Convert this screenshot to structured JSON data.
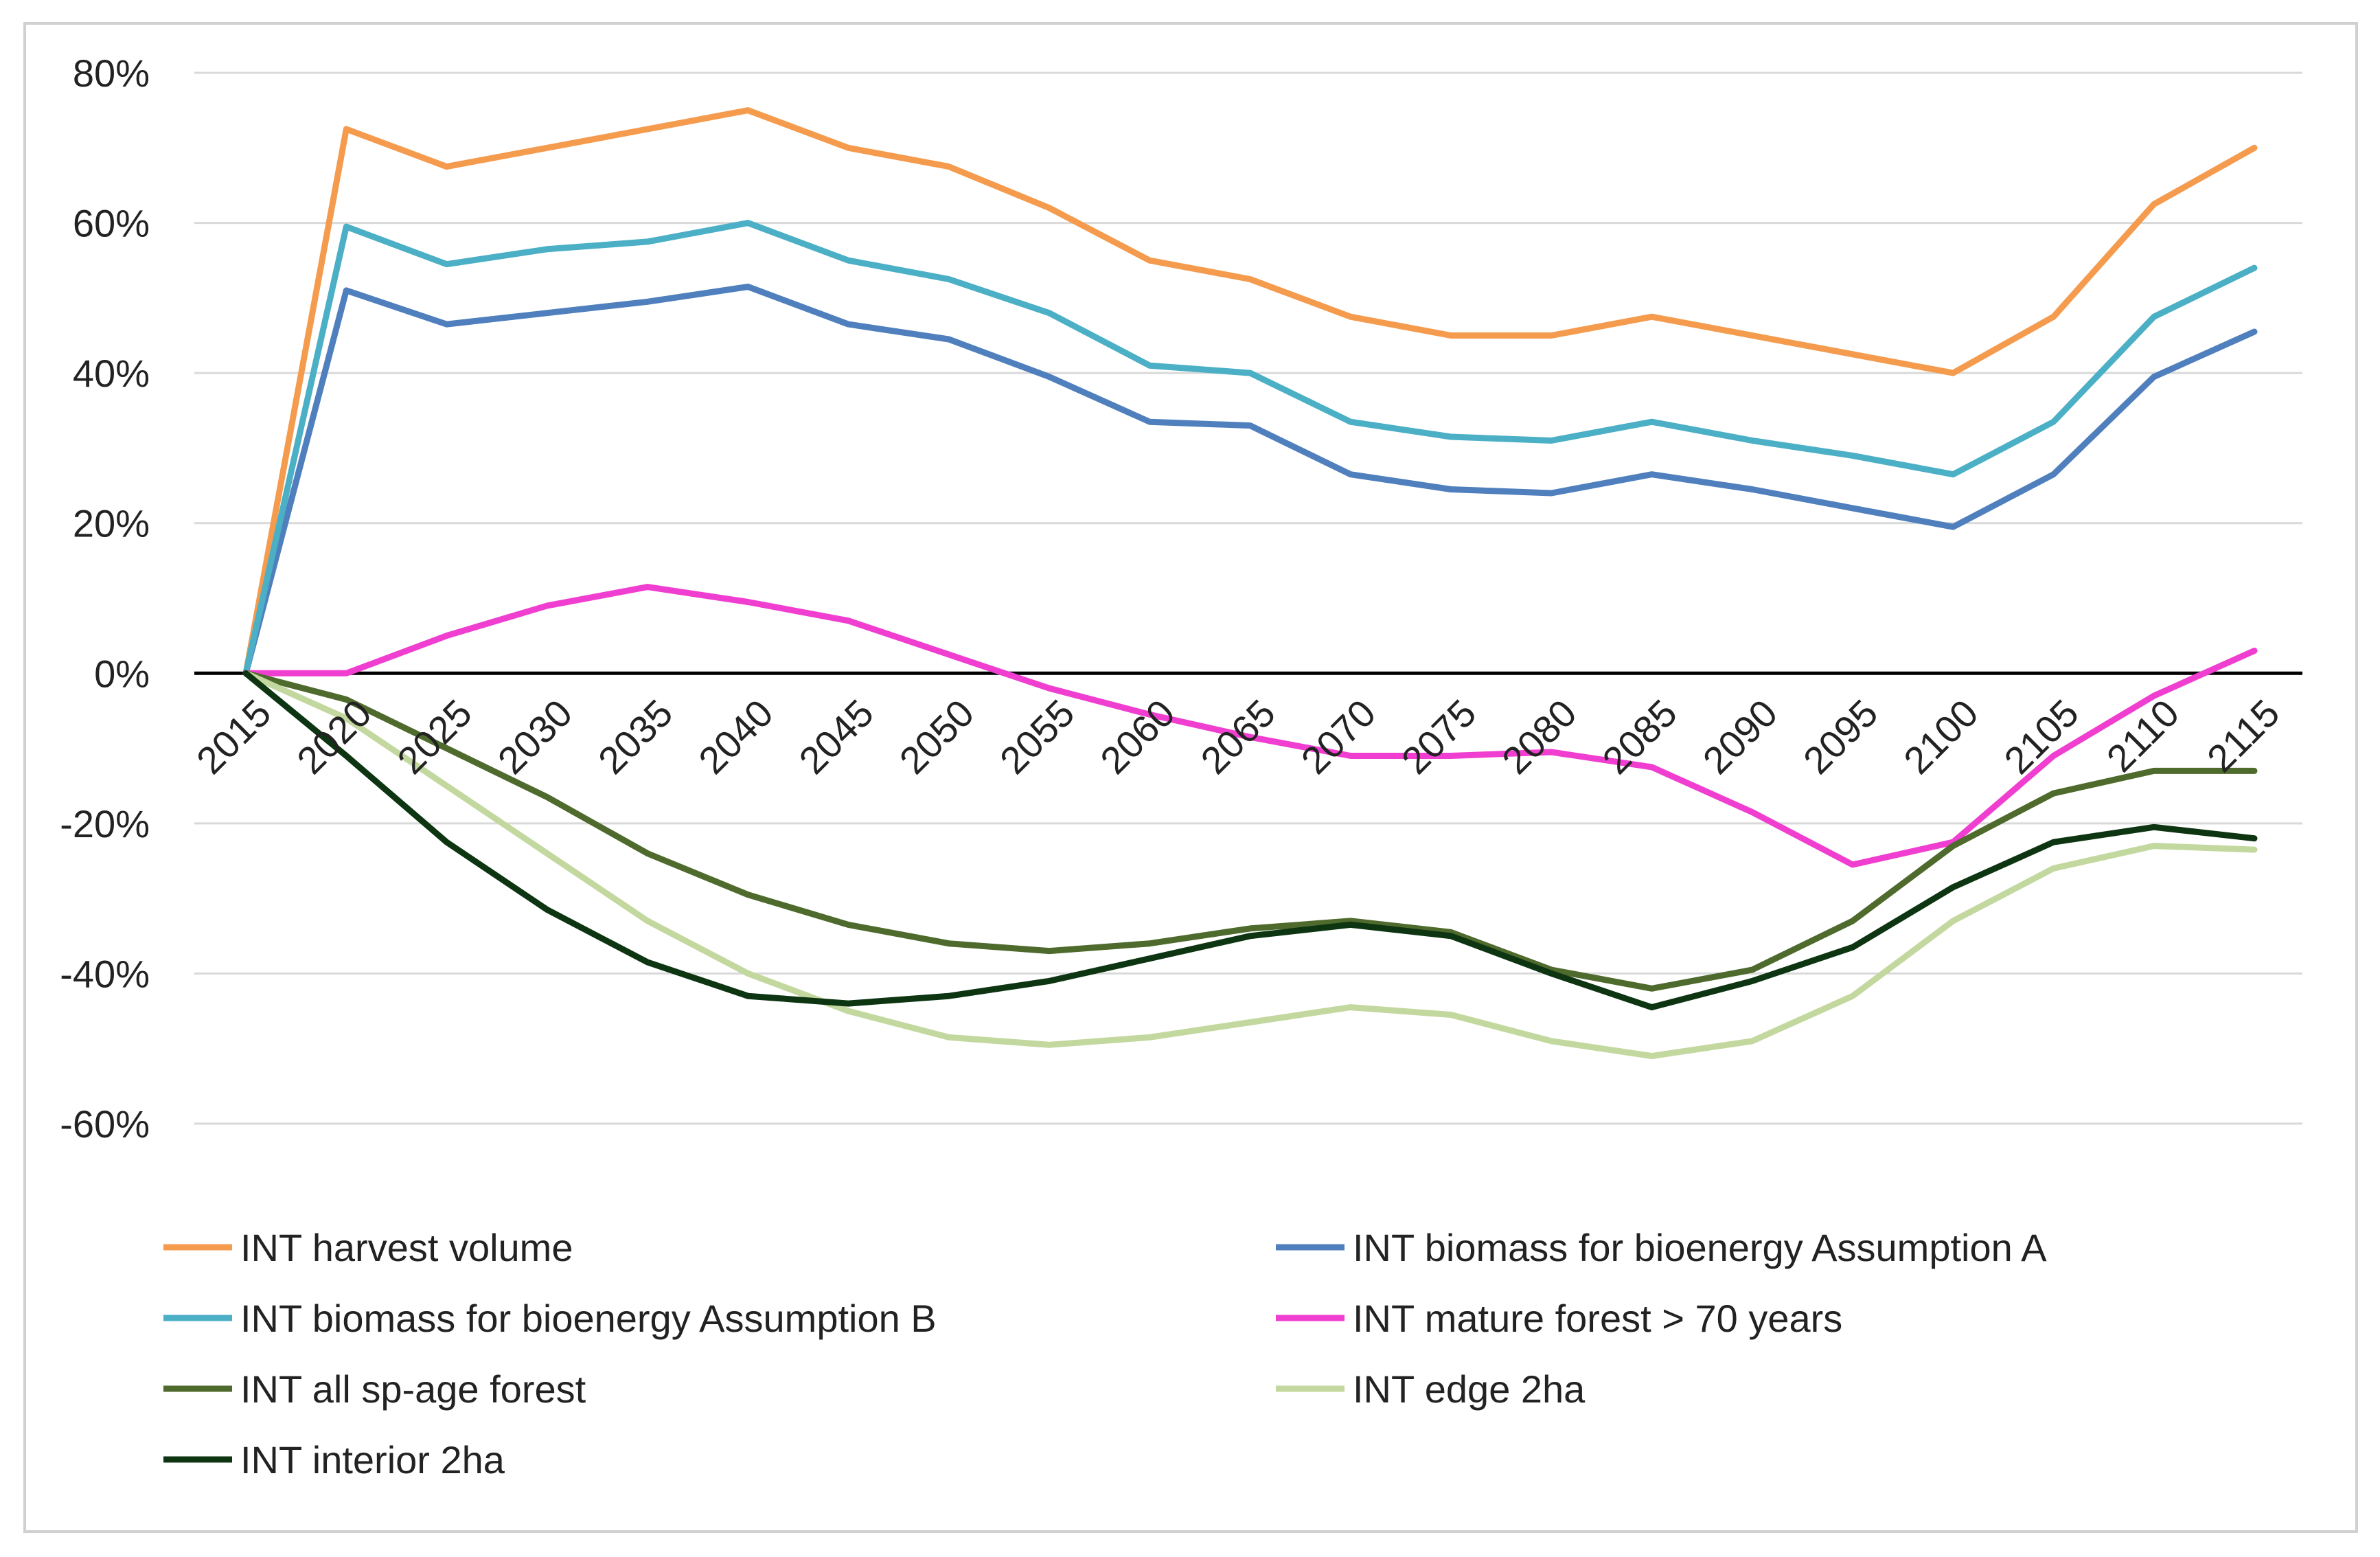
{
  "chart_data": {
    "type": "line",
    "title": "",
    "xlabel": "",
    "ylabel": "",
    "x": [
      "2015",
      "2020",
      "2025",
      "2030",
      "2035",
      "2040",
      "2045",
      "2050",
      "2055",
      "2060",
      "2065",
      "2070",
      "2075",
      "2080",
      "2085",
      "2090",
      "2095",
      "2100",
      "2105",
      "2110",
      "2115"
    ],
    "ylim": [
      -60,
      80
    ],
    "yticks": [
      80,
      60,
      40,
      20,
      0,
      -20,
      -40,
      -60
    ],
    "ytick_labels": [
      "80%",
      "60%",
      "40%",
      "20%",
      "0%",
      "-20%",
      "-40%",
      "-60%"
    ],
    "grid": true,
    "legend_position": "bottom",
    "series": [
      {
        "name": "INT harvest volume",
        "color": "#F59B4E",
        "values": [
          0,
          72.5,
          67.5,
          70,
          72.5,
          75,
          70,
          67.5,
          62,
          55,
          52.5,
          47.5,
          45,
          45,
          47.5,
          45,
          42.5,
          40,
          47.5,
          62.5,
          70
        ]
      },
      {
        "name": "INT biomass for bioenergy Assumption A",
        "color": "#4F7FBD",
        "values": [
          0,
          51,
          46.5,
          48,
          49.5,
          51.5,
          46.5,
          44.5,
          39.5,
          33.5,
          33,
          26.5,
          24.5,
          24,
          26.5,
          24.5,
          22,
          19.5,
          26.5,
          39.5,
          45.5
        ]
      },
      {
        "name": "INT biomass for bioenergy Assumption B",
        "color": "#4BAFC6",
        "values": [
          0,
          59.5,
          54.5,
          56.5,
          57.5,
          60,
          55,
          52.5,
          48,
          41,
          40,
          33.5,
          31.5,
          31,
          33.5,
          31,
          29,
          26.5,
          33.5,
          47.5,
          54
        ]
      },
      {
        "name": "INT mature forest > 70 years",
        "color": "#F03ED0",
        "values": [
          0,
          0,
          5,
          9,
          11.5,
          9.5,
          7,
          2.5,
          -2,
          -5.5,
          -8.5,
          -11,
          -11,
          -10.5,
          -12.5,
          -18.5,
          -25.5,
          -22.5,
          -11,
          -3,
          3
        ]
      },
      {
        "name": "INT all sp-age forest",
        "color": "#4E6A2C",
        "values": [
          0,
          -3.5,
          -10,
          -16.5,
          -24,
          -29.5,
          -33.5,
          -36,
          -37,
          -36,
          -34,
          -33,
          -34.5,
          -39.5,
          -42,
          -39.5,
          -33,
          -23,
          -16,
          -13,
          -13
        ]
      },
      {
        "name": "INT edge 2ha",
        "color": "#C3D89E",
        "values": [
          0,
          -6,
          -15,
          -24,
          -33,
          -40,
          -45,
          -48.5,
          -49.5,
          -48.5,
          -46.5,
          -44.5,
          -45.5,
          -49,
          -51,
          -49,
          -43,
          -33,
          -26,
          -23,
          -23.5
        ]
      },
      {
        "name": "INT interior 2ha",
        "color": "#0D3511",
        "values": [
          0,
          -11,
          -22.5,
          -31.5,
          -38.5,
          -43,
          -44,
          -43,
          -41,
          -38,
          -35,
          -33.5,
          -35,
          -40,
          -44.5,
          -41,
          -36.5,
          -28.5,
          -22.5,
          -20.5,
          -22
        ]
      }
    ]
  }
}
